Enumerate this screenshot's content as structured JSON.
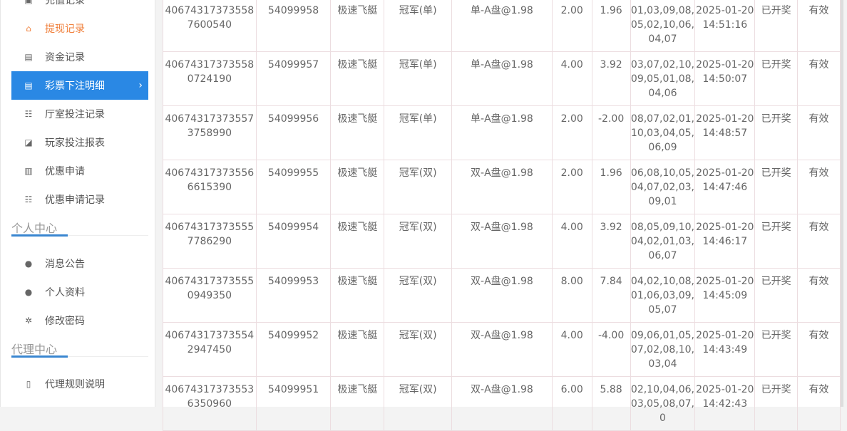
{
  "sidebar": {
    "items": [
      {
        "label": "充值记录",
        "icon": "deposit-icon"
      },
      {
        "label": "提现记录",
        "icon": "withdraw-icon"
      },
      {
        "label": "资金记录",
        "icon": "money-icon"
      },
      {
        "label": "彩票下注明细",
        "icon": "list-icon",
        "active": true
      },
      {
        "label": "厅室投注记录",
        "icon": "list-bullet-icon"
      },
      {
        "label": "玩家投注报表",
        "icon": "chart-icon"
      },
      {
        "label": "优惠申请",
        "icon": "gift-icon"
      },
      {
        "label": "优惠申请记录",
        "icon": "list-bullet-icon"
      }
    ],
    "personal": {
      "title": "个人中心",
      "items": [
        {
          "label": "消息公告",
          "icon": "bell-icon"
        },
        {
          "label": "个人资料",
          "icon": "user-icon"
        },
        {
          "label": "修改密码",
          "icon": "gear-icon"
        }
      ]
    },
    "agent": {
      "title": "代理中心",
      "items": [
        {
          "label": "代理规则说明",
          "icon": "document-icon"
        }
      ]
    },
    "active_color": "#2a88e4"
  },
  "table": {
    "rows": [
      [
        "406743173735587600540",
        "54099958",
        "极速飞艇",
        "冠军(单)",
        "单-A盘@1.98",
        "2.00",
        "1.96",
        "01,03,09,08,05,02,10,06,04,07",
        "2025-01-20 14:51:16",
        "已开奖",
        "有效"
      ],
      [
        "406743173735580724190",
        "54099957",
        "极速飞艇",
        "冠军(单)",
        "单-A盘@1.98",
        "4.00",
        "3.92",
        "03,07,02,10,09,05,01,08,04,06",
        "2025-01-20 14:50:07",
        "已开奖",
        "有效"
      ],
      [
        "406743173735573758990",
        "54099956",
        "极速飞艇",
        "冠军(单)",
        "单-A盘@1.98",
        "2.00",
        "-2.00",
        "08,07,02,01,10,03,04,05,06,09",
        "2025-01-20 14:48:57",
        "已开奖",
        "有效"
      ],
      [
        "406743173735566615390",
        "54099955",
        "极速飞艇",
        "冠军(双)",
        "双-A盘@1.98",
        "2.00",
        "1.96",
        "06,08,10,05,04,07,02,03,09,01",
        "2025-01-20 14:47:46",
        "已开奖",
        "有效"
      ],
      [
        "406743173735557786290",
        "54099954",
        "极速飞艇",
        "冠军(双)",
        "双-A盘@1.98",
        "4.00",
        "3.92",
        "08,05,09,10,04,02,01,03,06,07",
        "2025-01-20 14:46:17",
        "已开奖",
        "有效"
      ],
      [
        "406743173735550949350",
        "54099953",
        "极速飞艇",
        "冠军(双)",
        "双-A盘@1.98",
        "8.00",
        "7.84",
        "04,02,10,08,01,06,03,09,05,07",
        "2025-01-20 14:45:09",
        "已开奖",
        "有效"
      ],
      [
        "406743173735542947450",
        "54099952",
        "极速飞艇",
        "冠军(双)",
        "双-A盘@1.98",
        "4.00",
        "-4.00",
        "09,06,01,05,07,02,08,10,03,04",
        "2025-01-20 14:43:49",
        "已开奖",
        "有效"
      ],
      [
        "406743173735536350960",
        "54099951",
        "极速飞艇",
        "冠军(双)",
        "双-A盘@1.98",
        "6.00",
        "5.88",
        "02,10,04,06,03,05,08,07,0",
        "2025-01-20 14:42:43",
        "已开奖",
        "有效"
      ]
    ]
  }
}
